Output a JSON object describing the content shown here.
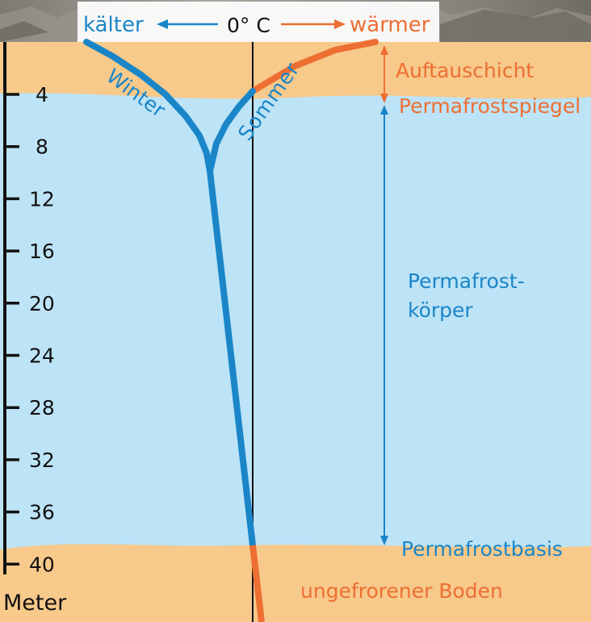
{
  "header": {
    "colder": "kälter",
    "zero": "0° C",
    "warmer": "wärmer"
  },
  "axis": {
    "unit": "Meter",
    "ticks": [
      "4",
      "8",
      "12",
      "16",
      "20",
      "24",
      "28",
      "32",
      "36",
      "40"
    ]
  },
  "curves": {
    "winter": "Winter",
    "summer": "Sommer"
  },
  "layers": {
    "active_layer": "Auftauschicht",
    "permafrost_table": "Permafrostspiegel",
    "permafrost_body_line1": "Permafrost-",
    "permafrost_body_line2": "körper",
    "permafrost_base": "Permafrostbasis",
    "unfrozen_ground": "ungefrorener Boden"
  },
  "colors": {
    "thawed": "#f7c98a",
    "permafrost": "#bde3f6",
    "blue": "#1a86c8",
    "orange": "#ee6f33",
    "rock": "#8a8782"
  }
}
